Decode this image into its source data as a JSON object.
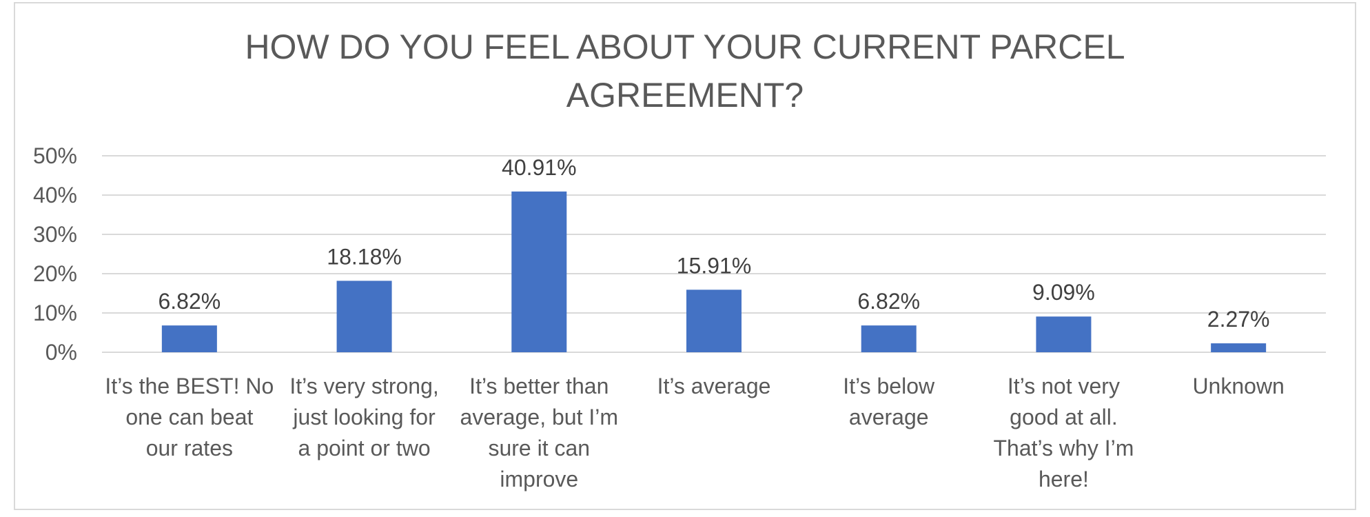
{
  "chart_data": {
    "type": "bar",
    "title_lines": [
      "HOW DO YOU FEEL ABOUT YOUR CURRENT PARCEL",
      "AGREEMENT?"
    ],
    "categories": [
      [
        "It’s the BEST! No",
        "one can beat",
        "our rates"
      ],
      [
        "It’s very strong,",
        "just looking for",
        "a point or two"
      ],
      [
        "It’s better than",
        "average, but I’m",
        "sure it can",
        "improve"
      ],
      [
        "It’s average"
      ],
      [
        "It’s below",
        "average"
      ],
      [
        "It’s not very",
        "good at all.",
        "That’s why I’m",
        "here!"
      ],
      [
        "Unknown"
      ]
    ],
    "values": [
      6.82,
      18.18,
      40.91,
      15.91,
      6.82,
      9.09,
      2.27
    ],
    "data_labels": [
      "6.82%",
      "18.18%",
      "40.91%",
      "15.91%",
      "6.82%",
      "9.09%",
      "2.27%"
    ],
    "y_ticks": [
      "0%",
      "10%",
      "20%",
      "30%",
      "40%",
      "50%"
    ],
    "ylim": [
      0,
      50
    ],
    "xlabel": "",
    "ylabel": "",
    "grid": true,
    "bar_color": "#4472c4"
  }
}
